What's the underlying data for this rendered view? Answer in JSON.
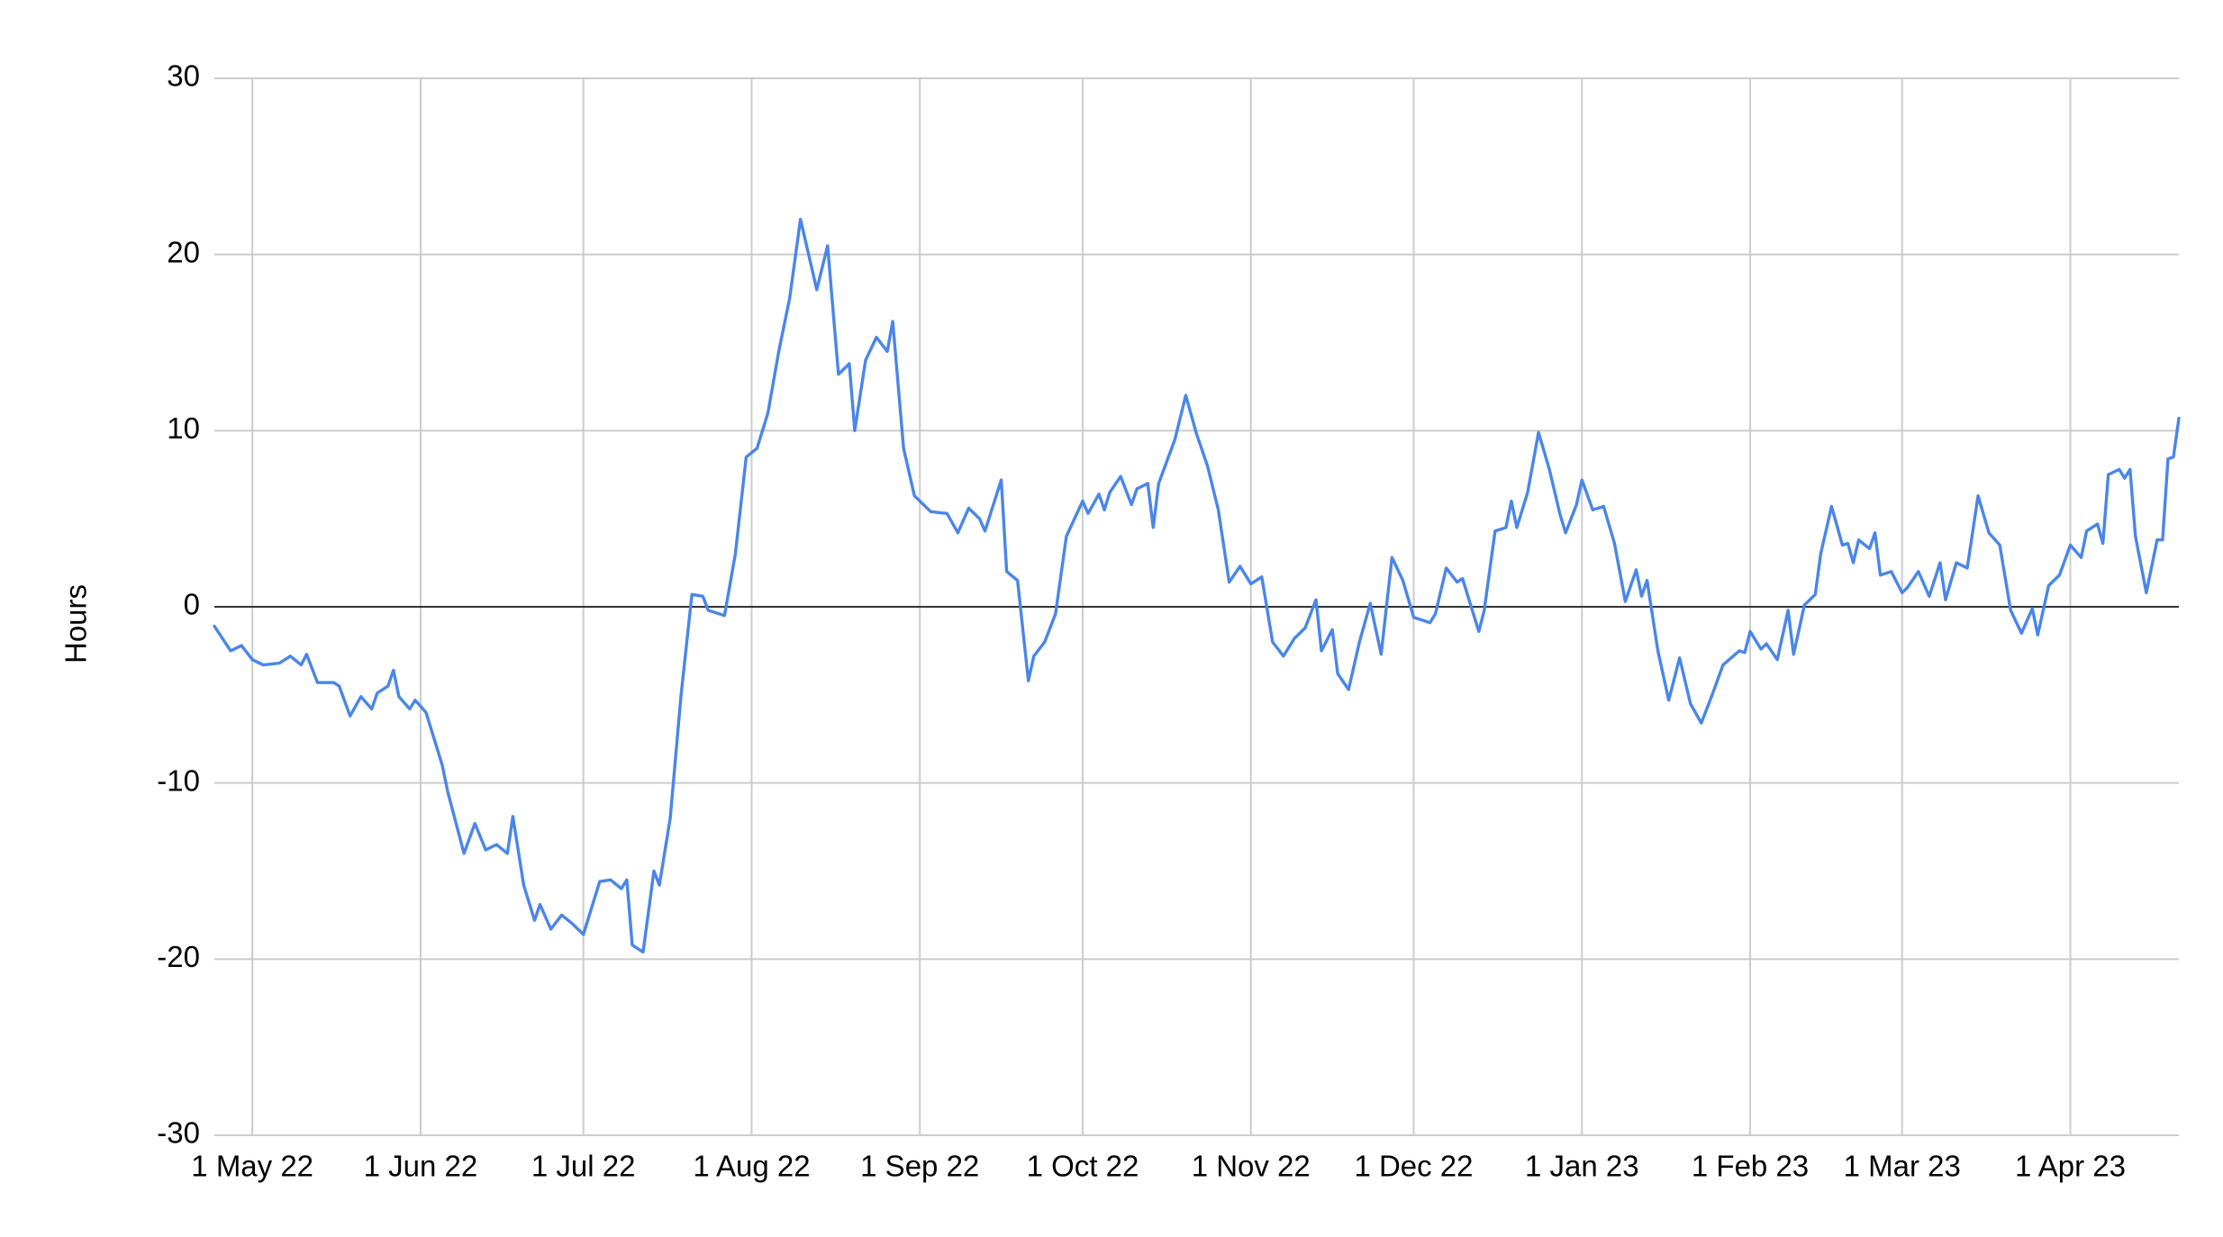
{
  "chart_data": {
    "type": "line",
    "y_label": "Hours",
    "color": "#4a86e8",
    "grid": true,
    "xlim": [
      "2022-04-24",
      "2023-04-21"
    ],
    "xticks": [
      {
        "value": "2022-05-01",
        "label": "1 May 22"
      },
      {
        "value": "2022-06-01",
        "label": "1 Jun 22"
      },
      {
        "value": "2022-07-01",
        "label": "1 Jul 22"
      },
      {
        "value": "2022-08-01",
        "label": "1 Aug 22"
      },
      {
        "value": "2022-09-01",
        "label": "1 Sep 22"
      },
      {
        "value": "2022-10-01",
        "label": "1 Oct 22"
      },
      {
        "value": "2022-11-01",
        "label": "1 Nov 22"
      },
      {
        "value": "2022-12-01",
        "label": "1 Dec 22"
      },
      {
        "value": "2023-01-01",
        "label": "1 Jan 23"
      },
      {
        "value": "2023-02-01",
        "label": "1 Feb 23"
      },
      {
        "value": "2023-03-01",
        "label": "1 Mar 23"
      },
      {
        "value": "2023-04-01",
        "label": "1 Apr 23"
      }
    ],
    "ylim": [
      -30,
      30
    ],
    "yticks": [
      -30,
      -20,
      -10,
      0,
      10,
      20,
      30
    ],
    "x": [
      "2022-04-24",
      "2022-04-27",
      "2022-04-29",
      "2022-05-01",
      "2022-05-03",
      "2022-05-06",
      "2022-05-08",
      "2022-05-10",
      "2022-05-11",
      "2022-05-13",
      "2022-05-16",
      "2022-05-17",
      "2022-05-19",
      "2022-05-21",
      "2022-05-23",
      "2022-05-24",
      "2022-05-26",
      "2022-05-27",
      "2022-05-28",
      "2022-05-30",
      "2022-05-31",
      "2022-06-02",
      "2022-06-05",
      "2022-06-06",
      "2022-06-09",
      "2022-06-11",
      "2022-06-13",
      "2022-06-15",
      "2022-06-17",
      "2022-06-18",
      "2022-06-20",
      "2022-06-22",
      "2022-06-23",
      "2022-06-25",
      "2022-06-27",
      "2022-06-29",
      "2022-07-01",
      "2022-07-04",
      "2022-07-06",
      "2022-07-08",
      "2022-07-09",
      "2022-07-10",
      "2022-07-12",
      "2022-07-14",
      "2022-07-15",
      "2022-07-17",
      "2022-07-19",
      "2022-07-21",
      "2022-07-23",
      "2022-07-24",
      "2022-07-27",
      "2022-07-29",
      "2022-07-31",
      "2022-08-02",
      "2022-08-04",
      "2022-08-06",
      "2022-08-08",
      "2022-08-10",
      "2022-08-13",
      "2022-08-15",
      "2022-08-17",
      "2022-08-19",
      "2022-08-20",
      "2022-08-22",
      "2022-08-24",
      "2022-08-26",
      "2022-08-27",
      "2022-08-29",
      "2022-08-31",
      "2022-09-03",
      "2022-09-06",
      "2022-09-08",
      "2022-09-10",
      "2022-09-12",
      "2022-09-13",
      "2022-09-16",
      "2022-09-17",
      "2022-09-19",
      "2022-09-21",
      "2022-09-22",
      "2022-09-24",
      "2022-09-26",
      "2022-09-28",
      "2022-10-01",
      "2022-10-02",
      "2022-10-04",
      "2022-10-05",
      "2022-10-06",
      "2022-10-08",
      "2022-10-10",
      "2022-10-11",
      "2022-10-13",
      "2022-10-14",
      "2022-10-15",
      "2022-10-18",
      "2022-10-20",
      "2022-10-22",
      "2022-10-24",
      "2022-10-26",
      "2022-10-28",
      "2022-10-30",
      "2022-11-01",
      "2022-11-03",
      "2022-11-05",
      "2022-11-07",
      "2022-11-09",
      "2022-11-11",
      "2022-11-13",
      "2022-11-14",
      "2022-11-16",
      "2022-11-17",
      "2022-11-19",
      "2022-11-21",
      "2022-11-23",
      "2022-11-25",
      "2022-11-27",
      "2022-11-29",
      "2022-12-01",
      "2022-12-04",
      "2022-12-05",
      "2022-12-07",
      "2022-12-09",
      "2022-12-10",
      "2022-12-13",
      "2022-12-14",
      "2022-12-16",
      "2022-12-18",
      "2022-12-19",
      "2022-12-20",
      "2022-12-22",
      "2022-12-24",
      "2022-12-26",
      "2022-12-28",
      "2022-12-29",
      "2022-12-31",
      "2023-01-01",
      "2023-01-03",
      "2023-01-05",
      "2023-01-07",
      "2023-01-09",
      "2023-01-11",
      "2023-01-12",
      "2023-01-13",
      "2023-01-15",
      "2023-01-17",
      "2023-01-19",
      "2023-01-21",
      "2023-01-23",
      "2023-01-25",
      "2023-01-27",
      "2023-01-30",
      "2023-01-31",
      "2023-02-01",
      "2023-02-03",
      "2023-02-04",
      "2023-02-06",
      "2023-02-08",
      "2023-02-09",
      "2023-02-11",
      "2023-02-13",
      "2023-02-14",
      "2023-02-16",
      "2023-02-18",
      "2023-02-19",
      "2023-02-20",
      "2023-02-21",
      "2023-02-23",
      "2023-02-24",
      "2023-02-25",
      "2023-02-27",
      "2023-03-01",
      "2023-03-02",
      "2023-03-04",
      "2023-03-06",
      "2023-03-08",
      "2023-03-09",
      "2023-03-11",
      "2023-03-13",
      "2023-03-15",
      "2023-03-17",
      "2023-03-19",
      "2023-03-21",
      "2023-03-23",
      "2023-03-25",
      "2023-03-26",
      "2023-03-28",
      "2023-03-30",
      "2023-04-01",
      "2023-04-03",
      "2023-04-04",
      "2023-04-06",
      "2023-04-07",
      "2023-04-08",
      "2023-04-10",
      "2023-04-11",
      "2023-04-12",
      "2023-04-13",
      "2023-04-15",
      "2023-04-17",
      "2023-04-18",
      "2023-04-19",
      "2023-04-20",
      "2023-04-21"
    ],
    "values": [
      -1.1,
      -2.5,
      -2.2,
      -3,
      -3.3,
      -3.2,
      -2.8,
      -3.3,
      -2.7,
      -4.3,
      -4.3,
      -4.5,
      -6.2,
      -5.1,
      -5.8,
      -4.9,
      -4.5,
      -3.6,
      -5.1,
      -5.8,
      -5.3,
      -6,
      -9,
      -10.5,
      -14,
      -12.3,
      -13.8,
      -13.5,
      -14,
      -11.9,
      -15.8,
      -17.8,
      -16.9,
      -18.3,
      -17.5,
      -18,
      -18.6,
      -15.6,
      -15.5,
      -16,
      -15.5,
      -19.2,
      -19.6,
      -15,
      -15.8,
      -12,
      -5,
      0.7,
      0.6,
      -0.2,
      -0.5,
      3,
      8.5,
      9,
      11,
      14.5,
      17.5,
      22,
      18,
      20.5,
      13.2,
      13.8,
      10,
      14,
      15.3,
      14.5,
      16.2,
      9,
      6.3,
      5.4,
      5.3,
      4.2,
      5.6,
      5,
      4.3,
      7.2,
      2,
      1.5,
      -4.2,
      -2.8,
      -2,
      -0.4,
      4,
      6,
      5.3,
      6.4,
      5.5,
      6.5,
      7.4,
      5.8,
      6.7,
      7,
      4.5,
      7,
      9.5,
      12,
      9.8,
      8,
      5.5,
      1.4,
      2.3,
      1.3,
      1.7,
      -2,
      -2.8,
      -1.8,
      -1.2,
      0.4,
      -2.5,
      -1.3,
      -3.8,
      -4.7,
      -2,
      0.2,
      -2.7,
      2.8,
      1.5,
      -0.6,
      -0.9,
      -0.4,
      2.2,
      1.4,
      1.6,
      -1.4,
      -0.2,
      4.3,
      4.5,
      6,
      4.5,
      6.5,
      9.9,
      7.8,
      5.2,
      4.2,
      5.8,
      7.2,
      5.5,
      5.7,
      3.6,
      0.3,
      2.1,
      0.6,
      1.5,
      -2.5,
      -5.3,
      -2.9,
      -5.5,
      -6.6,
      -5,
      -3.3,
      -2.5,
      -2.6,
      -1.4,
      -2.4,
      -2.1,
      -3,
      -0.2,
      -2.7,
      0.1,
      0.7,
      3,
      5.7,
      3.5,
      3.6,
      2.5,
      3.8,
      3.3,
      4.2,
      1.8,
      2,
      0.8,
      1.1,
      2,
      0.6,
      2.5,
      0.4,
      2.5,
      2.2,
      6.3,
      4.2,
      3.5,
      -0.2,
      -1.5,
      -0.1,
      -1.6,
      1.2,
      1.8,
      3.5,
      2.8,
      4.3,
      4.7,
      3.6,
      7.5,
      7.8,
      7.3,
      7.8,
      4,
      0.8,
      3.8,
      3.8,
      8.4,
      8.5,
      10.7
    ]
  }
}
